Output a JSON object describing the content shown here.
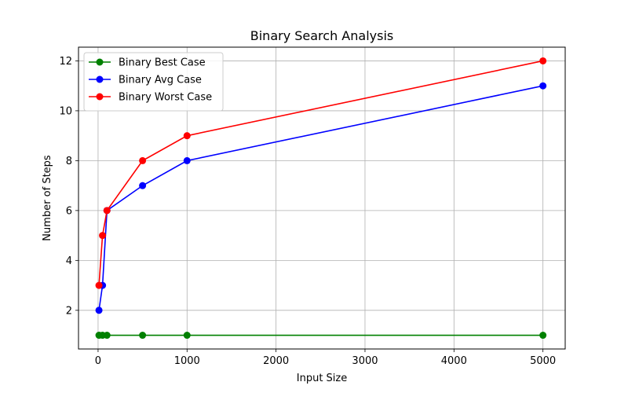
{
  "chart_data": {
    "type": "line",
    "title": "Binary Search Analysis",
    "xlabel": "Input Size",
    "ylabel": "Number of Steps",
    "x": [
      10,
      50,
      100,
      500,
      1000,
      5000
    ],
    "series": [
      {
        "name": "Binary Best Case",
        "color": "#008000",
        "values": [
          1,
          1,
          1,
          1,
          1,
          1
        ]
      },
      {
        "name": "Binary Avg Case",
        "color": "#0000ff",
        "values": [
          2,
          3,
          6,
          7,
          8,
          11
        ]
      },
      {
        "name": "Binary Worst Case",
        "color": "#ff0000",
        "values": [
          3,
          5,
          6,
          8,
          9,
          12
        ]
      }
    ],
    "xlim": [
      -220,
      5250
    ],
    "ylim": [
      0.45,
      12.55
    ],
    "xticks": [
      0,
      1000,
      2000,
      3000,
      4000,
      5000
    ],
    "yticks": [
      2,
      4,
      6,
      8,
      10,
      12
    ],
    "grid": true,
    "legend_position": "top-left"
  }
}
